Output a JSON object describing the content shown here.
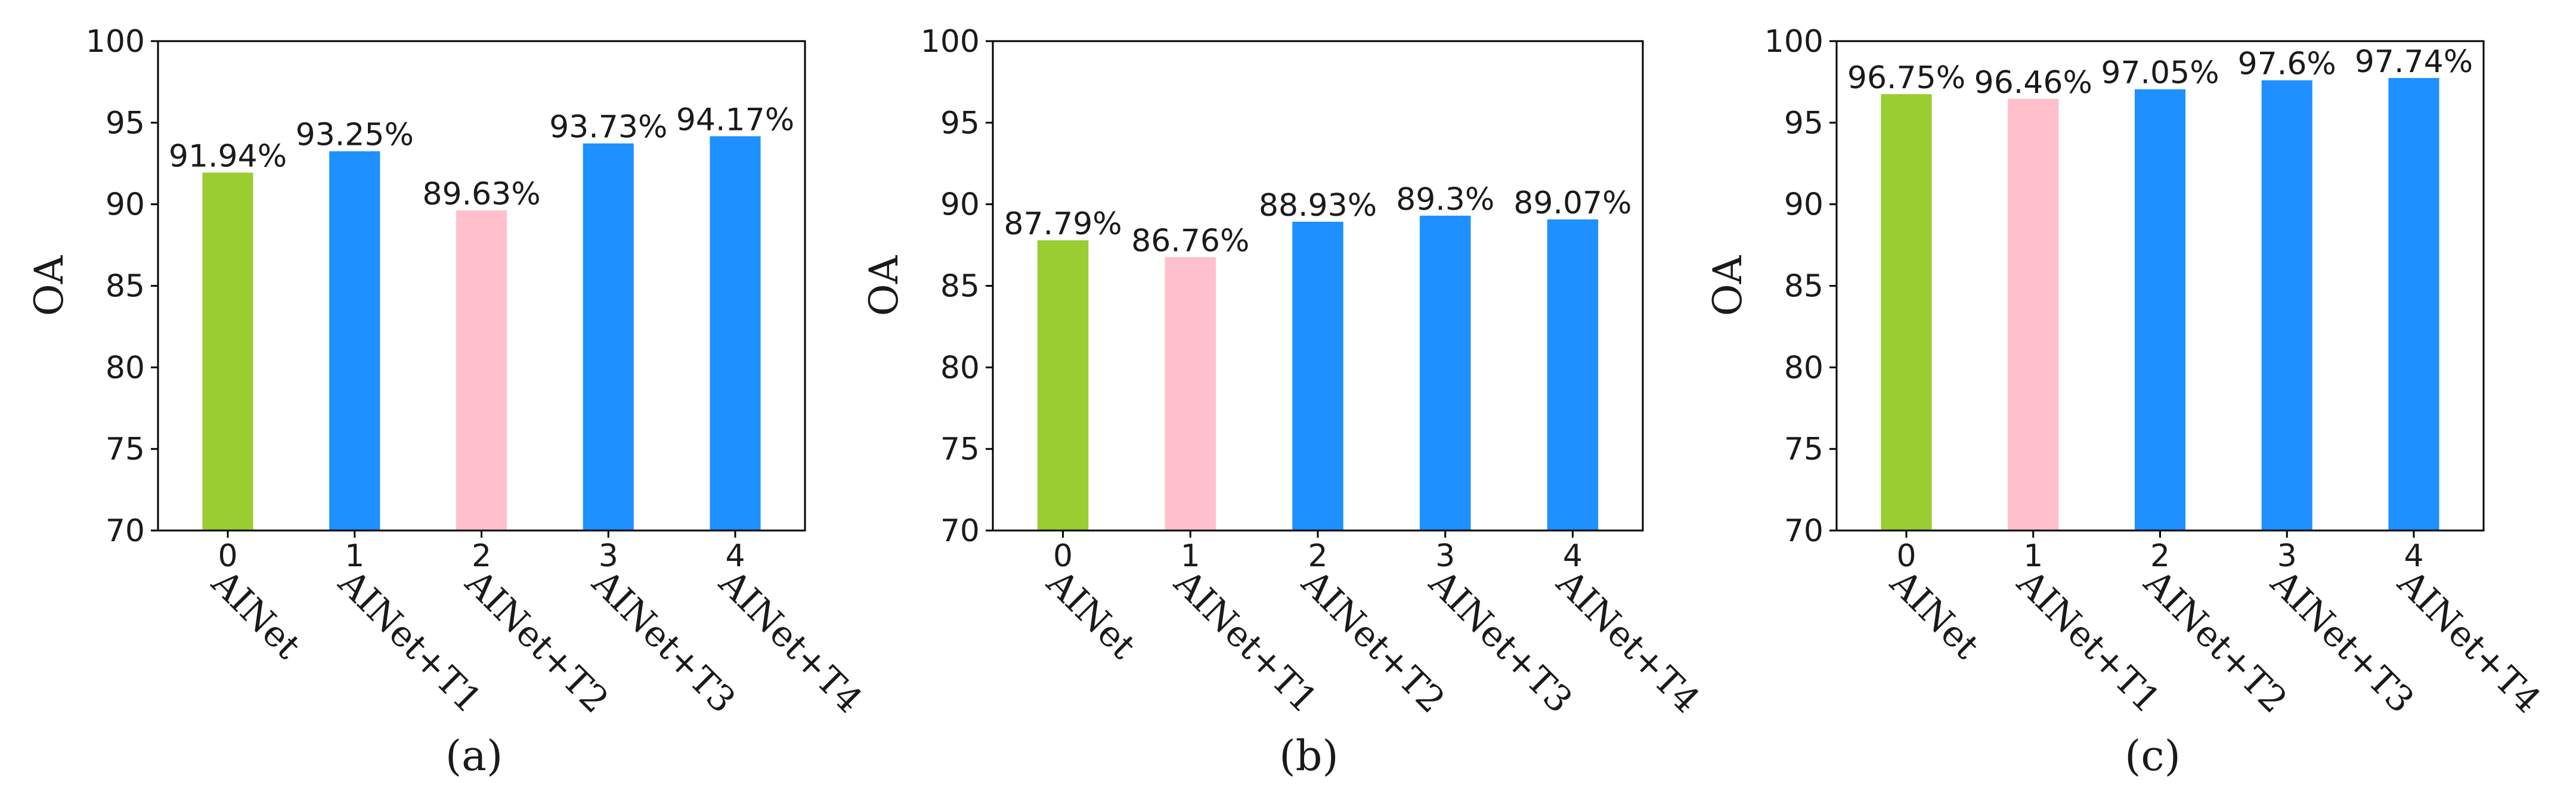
{
  "colors": {
    "baseline": "#9ACD32",
    "decrease": "#FFC0CB",
    "increase": "#1E90FF",
    "axis": "#000000",
    "text": "#1a1a1a"
  },
  "chart_data": [
    {
      "type": "bar",
      "panel_label": "(a)",
      "ylabel": "OA",
      "xlabel": "",
      "ylim": [
        70,
        100
      ],
      "yticks": [
        "70",
        "75",
        "80",
        "85",
        "90",
        "95",
        "100"
      ],
      "grid": false,
      "categories": [
        "0",
        "1",
        "2",
        "3",
        "4"
      ],
      "category_names": [
        "AINet",
        "AINet+T1",
        "AINet+T2",
        "AINet+T3",
        "AINet+T4"
      ],
      "values": [
        91.94,
        93.25,
        89.63,
        93.73,
        94.17
      ],
      "value_labels": [
        "91.94%",
        "93.25%",
        "89.63%",
        "93.73%",
        "94.17%"
      ],
      "bar_colors": [
        "#9ACD32",
        "#1E90FF",
        "#FFC0CB",
        "#1E90FF",
        "#1E90FF"
      ]
    },
    {
      "type": "bar",
      "panel_label": "(b)",
      "ylabel": "OA",
      "xlabel": "",
      "ylim": [
        70,
        100
      ],
      "yticks": [
        "70",
        "75",
        "80",
        "85",
        "90",
        "95",
        "100"
      ],
      "grid": false,
      "categories": [
        "0",
        "1",
        "2",
        "3",
        "4"
      ],
      "category_names": [
        "AINet",
        "AINet+T1",
        "AINet+T2",
        "AINet+T3",
        "AINet+T4"
      ],
      "values": [
        87.79,
        86.76,
        88.93,
        89.3,
        89.07
      ],
      "value_labels": [
        "87.79%",
        "86.76%",
        "88.93%",
        "89.3%",
        "89.07%"
      ],
      "bar_colors": [
        "#9ACD32",
        "#FFC0CB",
        "#1E90FF",
        "#1E90FF",
        "#1E90FF"
      ]
    },
    {
      "type": "bar",
      "panel_label": "(c)",
      "ylabel": "OA",
      "xlabel": "",
      "ylim": [
        70,
        100
      ],
      "yticks": [
        "70",
        "75",
        "80",
        "85",
        "90",
        "95",
        "100"
      ],
      "grid": false,
      "categories": [
        "0",
        "1",
        "2",
        "3",
        "4"
      ],
      "category_names": [
        "AINet",
        "AINet+T1",
        "AINet+T2",
        "AINet+T3",
        "AINet+T4"
      ],
      "values": [
        96.75,
        96.46,
        97.05,
        97.6,
        97.74
      ],
      "value_labels": [
        "96.75%",
        "96.46%",
        "97.05%",
        "97.6%",
        "97.74%"
      ],
      "bar_colors": [
        "#9ACD32",
        "#FFC0CB",
        "#1E90FF",
        "#1E90FF",
        "#1E90FF"
      ]
    }
  ]
}
